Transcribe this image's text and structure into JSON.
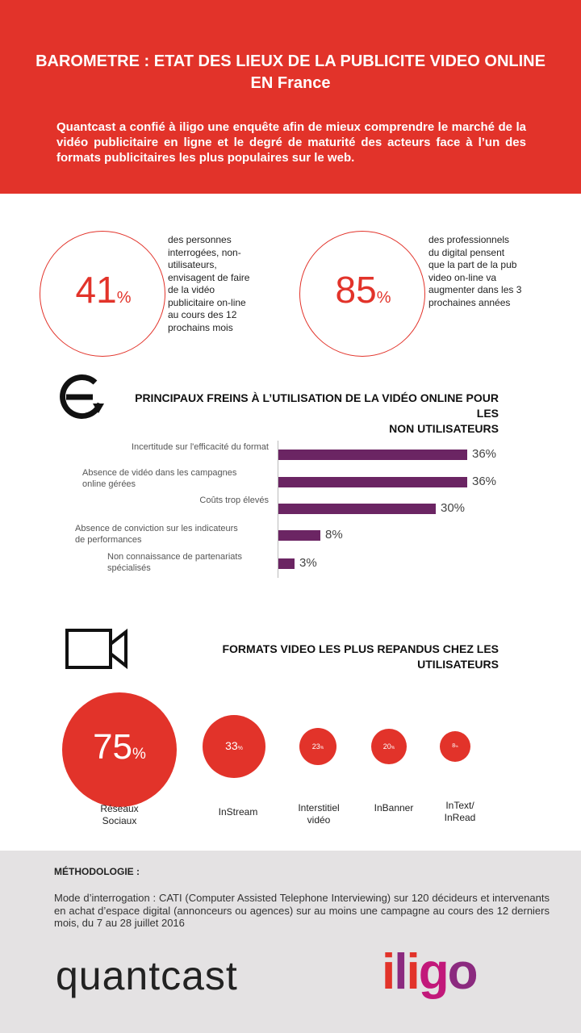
{
  "header": {
    "title_line1": "BAROMETRE : ETAT DES LIEUX DE LA PUBLICITE VIDEO ONLINE",
    "title_line2": "EN France",
    "intro": "Quantcast a confié à iligo une enquête afin de mieux comprendre le marché de la vidéo publicitaire en ligne et le degré de maturité des acteurs face à l’un des formats publicitaires les plus populaires sur le web."
  },
  "stats": [
    {
      "value": "41",
      "unit": "%",
      "lines": [
        "des personnes",
        "interrogées, non-",
        "utilisateurs,",
        "envisagent de faire",
        "de la vidéo",
        "publicitaire on-line",
        "au cours des 12",
        "prochains mois"
      ]
    },
    {
      "value": "85",
      "unit": "%",
      "lines": [
        "des professionnels",
        "du digital pensent",
        "que la part de la pub",
        "video on-line va",
        "augmenter dans les 3",
        "prochaines années"
      ]
    }
  ],
  "freins": {
    "title_line1": "PRINCIPAUX FREINS À L’UTILISATION DE LA VIDÉO ONLINE POUR LES",
    "title_line2": "NON UTILISATEURS"
  },
  "chart_data": {
    "type": "bar",
    "orientation": "horizontal",
    "categories": [
      [
        "Incertitude sur l'efficacité du format"
      ],
      [
        "Absence de vidéo dans les campagnes",
        "online gérées"
      ],
      [
        "Coûts trop élevés"
      ],
      [
        "Absence de conviction sur les indicateurs",
        "de performances"
      ],
      [
        "Non connaissance de partenariats",
        "spécialisés"
      ]
    ],
    "values": [
      36,
      36,
      30,
      8,
      3
    ],
    "labels": [
      "36%",
      "36%",
      "30%",
      "8%",
      "3%"
    ],
    "color": "#6b2563",
    "grid": false
  },
  "formats": {
    "title": "FORMATS VIDEO LES PLUS REPANDUS CHEZ LES UTILISATEURS",
    "items": [
      {
        "value": "75",
        "unit": "%",
        "label_lines": [
          "Réseaux",
          "Sociaux"
        ]
      },
      {
        "value": "33",
        "unit": "%",
        "label_lines": [
          "InStream"
        ]
      },
      {
        "value": "23",
        "unit": "%",
        "label_lines": [
          "Interstitiel",
          "vidéo"
        ]
      },
      {
        "value": "20",
        "unit": "%",
        "label_lines": [
          "InBanner"
        ]
      },
      {
        "value": "8",
        "unit": "%",
        "label_lines": [
          "InText/",
          "InRead"
        ]
      }
    ]
  },
  "methodology": {
    "title": "MÉTHODOLOGIE :",
    "text": "Mode d’interrogation : CATI (Computer Assisted Telephone Interviewing) sur 120 décideurs et intervenants en achat d’espace digital (annonceurs ou agences) sur au moins une campagne au cours des 12 derniers mois, du 7 au 28 juillet 2016"
  },
  "logos": {
    "quantcast": "quantcast",
    "iligo": "iligo"
  },
  "colors": {
    "brand_red": "#e2332a",
    "bar_purple": "#6b2563",
    "footer_gray": "#e4e2e3",
    "iligo_red": "#e2332a",
    "iligo_purple": "#8b2a7f",
    "iligo_magenta": "#c2187a"
  }
}
